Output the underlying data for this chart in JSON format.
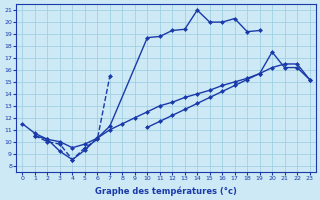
{
  "xlabel": "Graphe des températures (°c)",
  "xlim": [
    -0.5,
    23.5
  ],
  "ylim": [
    7.5,
    21.5
  ],
  "xticks": [
    0,
    1,
    2,
    3,
    4,
    5,
    6,
    7,
    8,
    9,
    10,
    11,
    12,
    13,
    14,
    15,
    16,
    17,
    18,
    19,
    20,
    21,
    22,
    23
  ],
  "yticks": [
    8,
    9,
    10,
    11,
    12,
    13,
    14,
    15,
    16,
    17,
    18,
    19,
    20,
    21
  ],
  "bg_color": "#cce9f5",
  "grid_color": "#99cce0",
  "line_color": "#1a3aaa",
  "markersize": 2.5,
  "linewidth": 1.0,
  "series1_x": [
    0,
    1,
    2,
    3,
    4,
    5,
    6,
    7,
    10,
    11,
    12,
    13,
    14,
    15,
    16,
    17,
    18,
    19
  ],
  "series1_y": [
    11.5,
    10.7,
    10.2,
    9.2,
    8.5,
    9.3,
    10.3,
    11.3,
    18.7,
    18.8,
    19.3,
    19.4,
    21.0,
    20.0,
    20.0,
    20.3,
    19.2,
    19.3
  ],
  "series2_x": [
    1,
    2,
    3,
    4,
    5,
    6,
    7
  ],
  "series2_y": [
    10.5,
    10.0,
    9.8,
    8.5,
    9.5,
    10.2,
    15.5
  ],
  "series3_x": [
    1,
    2,
    3,
    4,
    5,
    6,
    7,
    8,
    9,
    10,
    11,
    12,
    13,
    14,
    15,
    16,
    17,
    18,
    19,
    20,
    21,
    22,
    23
  ],
  "series3_y": [
    10.5,
    10.2,
    10.0,
    9.5,
    9.8,
    10.3,
    11.0,
    11.5,
    12.0,
    12.5,
    13.0,
    13.3,
    13.7,
    14.0,
    14.3,
    14.7,
    15.0,
    15.3,
    15.7,
    17.5,
    16.2,
    16.2,
    15.2
  ],
  "series4_x": [
    10,
    11,
    12,
    13,
    14,
    15,
    16,
    17,
    18,
    19,
    20,
    21,
    22,
    23
  ],
  "series4_y": [
    11.2,
    11.7,
    12.2,
    12.7,
    13.2,
    13.7,
    14.2,
    14.7,
    15.2,
    15.7,
    16.2,
    16.5,
    16.5,
    15.2
  ]
}
